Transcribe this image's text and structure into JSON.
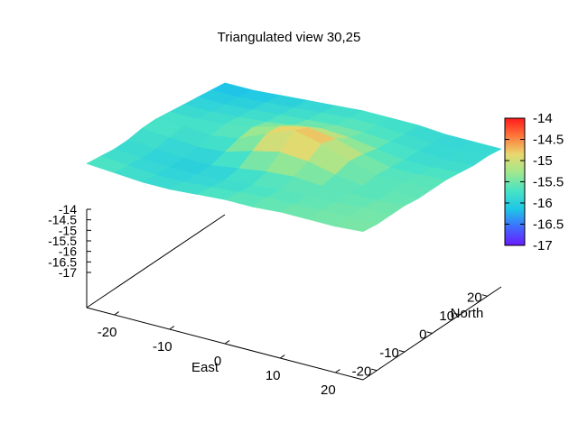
{
  "chart_data": {
    "type": "heatmap",
    "subtype": "3d-surface",
    "title": "Triangulated view 30,25",
    "xlabel": "East",
    "ylabel": "North",
    "zlabel": "",
    "xlim": [
      -25,
      25
    ],
    "ylim": [
      -25,
      25
    ],
    "zlim": [
      -17,
      -14
    ],
    "x_ticks": [
      "-20",
      "-10",
      "0",
      "10",
      "20"
    ],
    "y_ticks": [
      "-20",
      "-10",
      "0",
      "10",
      "20"
    ],
    "z_ticks": [
      "-14",
      "-14.5",
      "-15",
      "-15.5",
      "-16",
      "-16.5",
      "-17"
    ],
    "colorbar_ticks": [
      "-14",
      "-14.5",
      "-15",
      "-15.5",
      "-16",
      "-16.5",
      "-17"
    ],
    "colormap": [
      "#6a1bff",
      "#3f6cff",
      "#1ec7e6",
      "#48e3c6",
      "#9fe88e",
      "#e8d86e",
      "#ff7a3c",
      "#ff1a1a"
    ],
    "surface": {
      "x": [
        -25,
        -20,
        -15,
        -10,
        -5,
        0,
        5,
        10,
        15,
        20,
        25
      ],
      "y": [
        -25,
        -20,
        -15,
        -10,
        -5,
        0,
        5,
        10,
        15,
        20,
        25
      ],
      "z": [
        [
          -15.6,
          -15.7,
          -15.8,
          -15.8,
          -15.7,
          -15.6,
          -15.6,
          -15.5,
          -15.5,
          -15.5,
          -15.4
        ],
        [
          -15.7,
          -15.8,
          -15.9,
          -15.9,
          -15.8,
          -15.7,
          -15.6,
          -15.6,
          -15.5,
          -15.5,
          -15.5
        ],
        [
          -15.8,
          -15.9,
          -16.0,
          -16.0,
          -15.9,
          -15.8,
          -15.7,
          -15.6,
          -15.6,
          -15.5,
          -15.5
        ],
        [
          -15.8,
          -15.9,
          -16.0,
          -16.0,
          -15.8,
          -15.6,
          -15.5,
          -15.6,
          -15.6,
          -15.6,
          -15.5
        ],
        [
          -15.7,
          -15.8,
          -15.9,
          -15.8,
          -15.4,
          -15.1,
          -15.2,
          -15.5,
          -15.7,
          -15.6,
          -15.6
        ],
        [
          -15.7,
          -15.7,
          -15.8,
          -15.6,
          -15.0,
          -14.5,
          -14.8,
          -15.3,
          -15.6,
          -15.6,
          -15.6
        ],
        [
          -15.8,
          -15.8,
          -15.7,
          -15.5,
          -15.1,
          -14.8,
          -15.0,
          -15.4,
          -15.7,
          -15.7,
          -15.6
        ],
        [
          -15.9,
          -15.9,
          -15.8,
          -15.7,
          -15.5,
          -15.3,
          -15.4,
          -15.6,
          -15.8,
          -15.8,
          -15.7
        ],
        [
          -16.0,
          -16.0,
          -15.9,
          -15.8,
          -15.7,
          -15.6,
          -15.6,
          -15.7,
          -15.8,
          -15.9,
          -15.8
        ],
        [
          -16.1,
          -16.1,
          -16.0,
          -15.9,
          -15.8,
          -15.7,
          -15.7,
          -15.8,
          -15.9,
          -15.9,
          -15.8
        ],
        [
          -16.2,
          -16.2,
          -16.1,
          -16.0,
          -15.9,
          -15.8,
          -15.8,
          -15.8,
          -15.9,
          -15.9,
          -15.9
        ]
      ]
    }
  }
}
